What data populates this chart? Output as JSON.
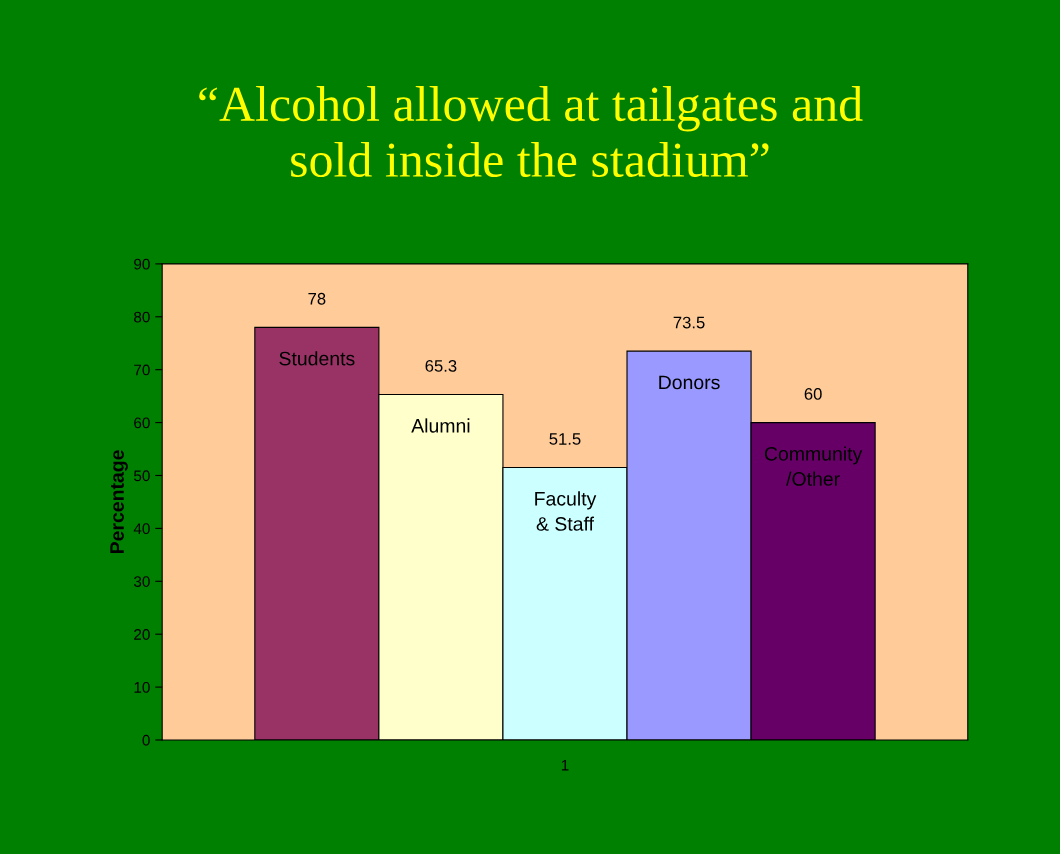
{
  "chart_data": {
    "type": "bar",
    "title": "“Alcohol allowed at tailgates and\nsold inside the stadium”",
    "ylabel": "Percentage",
    "categories": [
      "1"
    ],
    "series": [
      {
        "name": "Students",
        "color": "#993366",
        "values": [
          78
        ]
      },
      {
        "name": "Alumni",
        "color": "#ffffcc",
        "values": [
          65.3
        ]
      },
      {
        "name": "Faculty\n& Staff",
        "color": "#ccffff",
        "values": [
          51.5
        ]
      },
      {
        "name": "Donors",
        "color": "#9999ff",
        "values": [
          73.5
        ]
      },
      {
        "name": "Community\n/Other",
        "color": "#660066",
        "values": [
          60
        ]
      }
    ],
    "ylim": [
      0,
      90
    ],
    "yticks": [
      0,
      10,
      20,
      30,
      40,
      50,
      60,
      70,
      80,
      90
    ],
    "data_labels": true,
    "legend": false,
    "grid": false
  }
}
